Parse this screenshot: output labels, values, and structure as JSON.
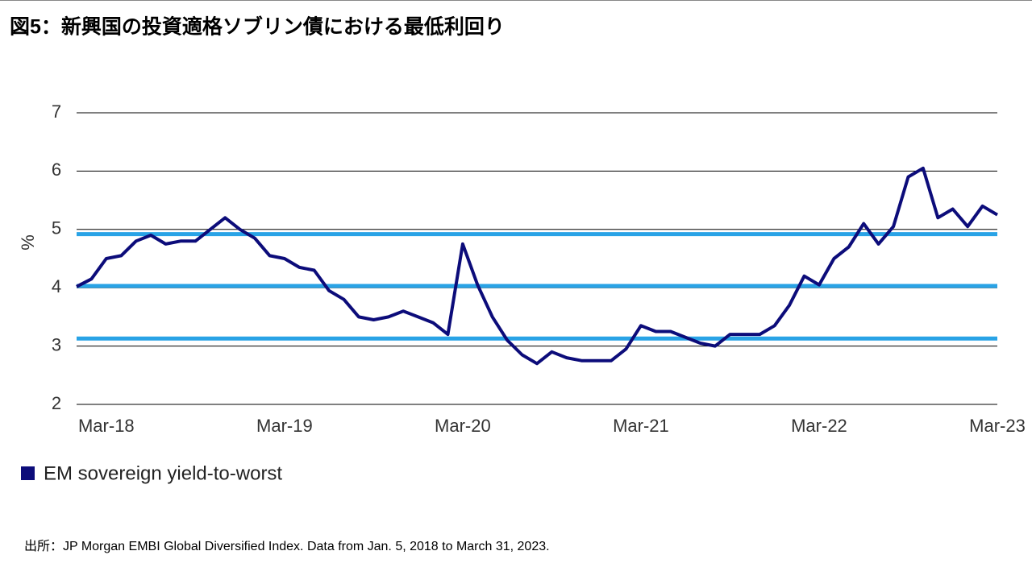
{
  "title": "図5：新興国の投資適格ソブリン債における最低利回り",
  "source": "出所：JP Morgan EMBI Global Diversified Index. Data from Jan. 5, 2018 to March 31, 2023.",
  "chart_data": {
    "type": "line",
    "y_label": "%",
    "categories": [
      null,
      null,
      "Mar-18",
      null,
      null,
      null,
      null,
      null,
      null,
      null,
      null,
      null,
      null,
      null,
      "Mar-19",
      null,
      null,
      null,
      null,
      null,
      null,
      null,
      null,
      null,
      null,
      null,
      "Mar-20",
      null,
      null,
      null,
      null,
      null,
      null,
      null,
      null,
      null,
      null,
      null,
      "Mar-21",
      null,
      null,
      null,
      null,
      null,
      null,
      null,
      null,
      null,
      null,
      null,
      "Mar-22",
      null,
      null,
      null,
      null,
      null,
      null,
      null,
      null,
      null,
      null,
      null,
      "Mar-23"
    ],
    "series": [
      {
        "name": "EM sovereign yield-to-worst",
        "color": "#0c0c7a",
        "values": [
          4.02,
          4.15,
          4.5,
          4.55,
          4.8,
          4.9,
          4.75,
          4.8,
          4.8,
          5.0,
          5.2,
          5.0,
          4.85,
          4.55,
          4.5,
          4.35,
          4.3,
          3.95,
          3.8,
          3.5,
          3.45,
          3.5,
          3.6,
          3.5,
          3.4,
          3.2,
          4.75,
          4.05,
          3.5,
          3.1,
          2.85,
          2.7,
          2.9,
          2.8,
          2.75,
          2.75,
          2.75,
          2.95,
          3.35,
          3.25,
          3.25,
          3.15,
          3.05,
          3.0,
          3.2,
          3.2,
          3.2,
          3.35,
          3.7,
          4.2,
          4.05,
          4.5,
          4.7,
          5.1,
          4.75,
          5.05,
          5.9,
          6.05,
          5.2,
          5.35,
          5.05,
          5.4,
          5.25
        ]
      }
    ],
    "reference_lines": {
      "color": "#29a3e6",
      "values": [
        4.92,
        4.03,
        3.13
      ]
    },
    "ylim": [
      2,
      7
    ],
    "yticks": [
      2,
      3,
      4,
      5,
      6,
      7
    ],
    "grid": true,
    "legend": "bottom-left"
  }
}
